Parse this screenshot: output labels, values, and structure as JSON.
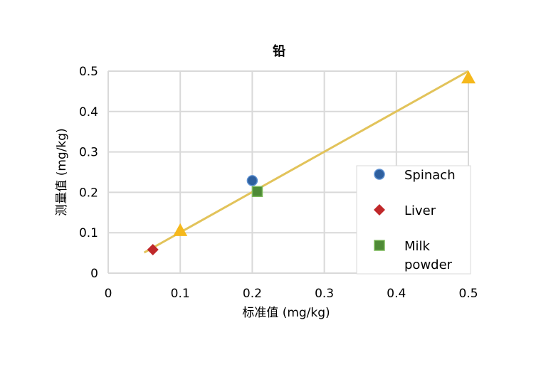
{
  "chart_data": {
    "type": "scatter",
    "title": "铅",
    "xlabel": "标准值 (mg/kg)",
    "ylabel": "测量值 (mg/kg)",
    "xlim": [
      0,
      0.5
    ],
    "ylim": [
      0,
      0.5
    ],
    "xticks": [
      "0",
      "0.1",
      "0.2",
      "0.3",
      "0.4",
      "0.5"
    ],
    "yticks": [
      "0",
      "0.1",
      "0.2",
      "0.3",
      "0.4",
      "0.5"
    ],
    "grid": true,
    "legend_position": "bottom-right",
    "series": [
      {
        "name": "Spinach",
        "marker": "circle",
        "color": "#2e5f9e",
        "points": [
          [
            0.2,
            0.229
          ]
        ]
      },
      {
        "name": "Liver",
        "marker": "diamond",
        "color": "#c0282a",
        "points": [
          [
            0.062,
            0.058
          ]
        ]
      },
      {
        "name": "Milk powder",
        "marker": "square",
        "color": "#4e8a36",
        "points": [
          [
            0.207,
            0.202
          ]
        ]
      },
      {
        "marker": "triangle",
        "color": "#f5b81c",
        "points": [
          [
            0.1,
            0.104
          ],
          [
            0.5,
            0.482
          ]
        ]
      }
    ],
    "fit_line": {
      "color": "#e2c35a",
      "points": [
        [
          0.05,
          0.051
        ],
        [
          0.5,
          0.5
        ]
      ]
    }
  }
}
